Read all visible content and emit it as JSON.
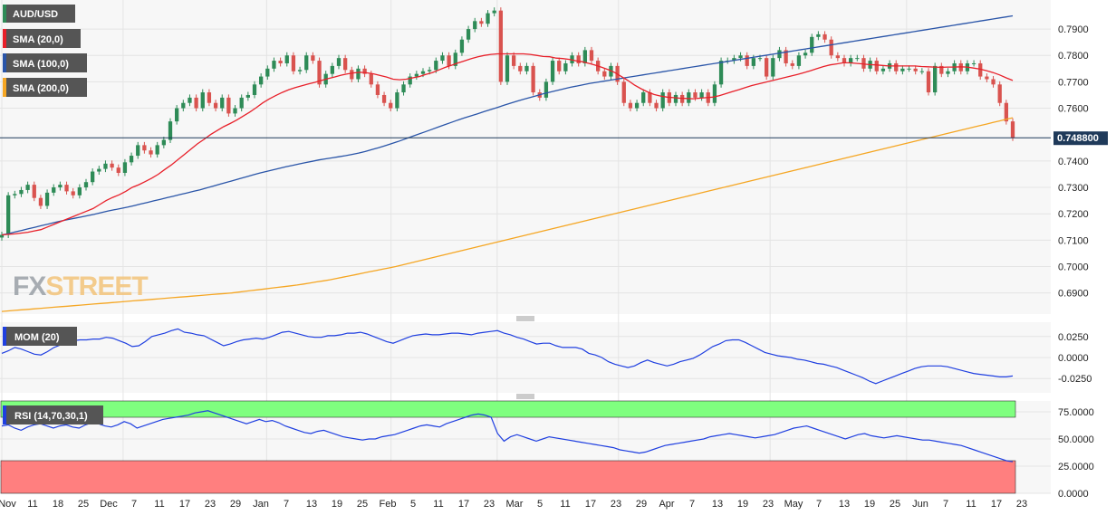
{
  "colors": {
    "background": "#f7f7f7",
    "grid": "#e4e4e4",
    "candle_up": "#2e8b57",
    "candle_down": "#d9534f",
    "sma20": "#e8202a",
    "sma100": "#2a55a8",
    "sma200": "#f5a623",
    "mom": "#1f3fe0",
    "rsi": "#1f3fe0",
    "rsi_overbought_zone": "#7fff7f",
    "rsi_oversold_zone": "#ff7f7f",
    "price_line": "#1f3a5a"
  },
  "watermark": {
    "part1": "FX",
    "part2": "STREET"
  },
  "chart_data": [
    {
      "type": "candlestick",
      "title": "AUD/USD",
      "legend": [
        {
          "label": "AUD/USD",
          "color": "#2e8b57"
        },
        {
          "label": "SMA (20,0)",
          "color": "#e8202a"
        },
        {
          "label": "SMA (100,0)",
          "color": "#2a55a8"
        },
        {
          "label": "SMA (200,0)",
          "color": "#f5a623"
        }
      ],
      "legend_placement": "top-left",
      "ylim": [
        0.682,
        0.801
      ],
      "yticks": [
        "0.7900",
        "0.7800",
        "0.7700",
        "0.7600",
        "0.7400",
        "0.7300",
        "0.7200",
        "0.7100",
        "0.7000",
        "0.6900"
      ],
      "ytick_values": [
        0.79,
        0.78,
        0.77,
        0.76,
        0.74,
        0.73,
        0.72,
        0.71,
        0.7,
        0.69
      ],
      "current_price": 0.7488,
      "current_price_label": "0.748800",
      "close": [
        0.712,
        0.727,
        0.7275,
        0.729,
        0.731,
        0.726,
        0.723,
        0.728,
        0.73,
        0.731,
        0.7285,
        0.727,
        0.73,
        0.732,
        0.736,
        0.737,
        0.739,
        0.7375,
        0.7355,
        0.7395,
        0.742,
        0.746,
        0.744,
        0.7425,
        0.746,
        0.748,
        0.755,
        0.76,
        0.762,
        0.764,
        0.76,
        0.766,
        0.762,
        0.76,
        0.764,
        0.758,
        0.76,
        0.764,
        0.765,
        0.769,
        0.772,
        0.775,
        0.778,
        0.777,
        0.78,
        0.774,
        0.7745,
        0.78,
        0.778,
        0.769,
        0.773,
        0.776,
        0.779,
        0.7745,
        0.771,
        0.775,
        0.773,
        0.769,
        0.765,
        0.762,
        0.76,
        0.766,
        0.769,
        0.772,
        0.773,
        0.774,
        0.7745,
        0.778,
        0.78,
        0.776,
        0.781,
        0.786,
        0.79,
        0.793,
        0.792,
        0.796,
        0.797,
        0.77,
        0.78,
        0.776,
        0.774,
        0.776,
        0.766,
        0.764,
        0.77,
        0.778,
        0.774,
        0.777,
        0.78,
        0.777,
        0.782,
        0.778,
        0.774,
        0.772,
        0.776,
        0.77,
        0.762,
        0.76,
        0.762,
        0.766,
        0.762,
        0.76,
        0.766,
        0.762,
        0.765,
        0.762,
        0.766,
        0.764,
        0.766,
        0.762,
        0.769,
        0.778,
        0.778,
        0.779,
        0.78,
        0.776,
        0.779,
        0.779,
        0.772,
        0.779,
        0.782,
        0.777,
        0.776,
        0.78,
        0.781,
        0.787,
        0.788,
        0.786,
        0.78,
        0.779,
        0.777,
        0.779,
        0.779,
        0.775,
        0.778,
        0.774,
        0.775,
        0.777,
        0.774,
        0.775,
        0.775,
        0.774,
        0.774,
        0.766,
        0.776,
        0.773,
        0.774,
        0.777,
        0.774,
        0.777,
        0.777,
        0.772,
        0.771,
        0.769,
        0.762,
        0.755,
        0.7488
      ],
      "sma20": [
        0.712,
        0.7122,
        0.7124,
        0.7127,
        0.713,
        0.7135,
        0.714,
        0.715,
        0.716,
        0.717,
        0.718,
        0.719,
        0.72,
        0.721,
        0.722,
        0.7235,
        0.725,
        0.7262,
        0.7272,
        0.7285,
        0.73,
        0.731,
        0.7322,
        0.7335,
        0.735,
        0.7368,
        0.7385,
        0.7405,
        0.7425,
        0.7445,
        0.7465,
        0.7482,
        0.75,
        0.7515,
        0.753,
        0.7542,
        0.7555,
        0.757,
        0.7585,
        0.7602,
        0.762,
        0.7635,
        0.7648,
        0.766,
        0.767,
        0.7678,
        0.7685,
        0.7692,
        0.7698,
        0.7705,
        0.7712,
        0.7718,
        0.7725,
        0.773,
        0.7734,
        0.7736,
        0.7734,
        0.773,
        0.7724,
        0.7718,
        0.771,
        0.7708,
        0.771,
        0.7715,
        0.772,
        0.7728,
        0.7735,
        0.7745,
        0.7755,
        0.7763,
        0.7772,
        0.778,
        0.7788,
        0.7795,
        0.78,
        0.7804,
        0.7806,
        0.7806,
        0.7806,
        0.7806,
        0.7806,
        0.7804,
        0.78,
        0.7796,
        0.7795,
        0.779,
        0.7788,
        0.7785,
        0.778,
        0.7776,
        0.777,
        0.7763,
        0.7755,
        0.7746,
        0.7735,
        0.772,
        0.7705,
        0.7688,
        0.7674,
        0.7662,
        0.7652,
        0.7646,
        0.7642,
        0.764,
        0.7638,
        0.7637,
        0.7636,
        0.7638,
        0.764,
        0.7642,
        0.7647,
        0.7655,
        0.7663,
        0.767,
        0.7678,
        0.7686,
        0.7692,
        0.7698,
        0.7704,
        0.771,
        0.7716,
        0.7722,
        0.7728,
        0.7735,
        0.7742,
        0.775,
        0.7758,
        0.7764,
        0.7768,
        0.7772,
        0.7772,
        0.777,
        0.7768,
        0.7765,
        0.7764,
        0.7762,
        0.776,
        0.776,
        0.776,
        0.776,
        0.776,
        0.7758,
        0.7757,
        0.7756,
        0.7755,
        0.7756,
        0.7756,
        0.7757,
        0.7756,
        0.7752,
        0.7748,
        0.7742,
        0.7735,
        0.7726,
        0.7715,
        0.7705
      ],
      "sma100": [
        0.712,
        0.7125,
        0.7131,
        0.7137,
        0.7143,
        0.7149,
        0.7155,
        0.7161,
        0.7167,
        0.7173,
        0.7178,
        0.7183,
        0.7188,
        0.7193,
        0.7198,
        0.7204,
        0.721,
        0.7215,
        0.722,
        0.7225,
        0.7231,
        0.7237,
        0.7243,
        0.7249,
        0.7255,
        0.7261,
        0.7267,
        0.7273,
        0.7279,
        0.7285,
        0.7291,
        0.7298,
        0.7305,
        0.7312,
        0.7319,
        0.7326,
        0.7333,
        0.734,
        0.7347,
        0.7354,
        0.736,
        0.7366,
        0.7372,
        0.7378,
        0.7383,
        0.7389,
        0.7394,
        0.7399,
        0.7404,
        0.7408,
        0.7412,
        0.7416,
        0.742,
        0.7425,
        0.743,
        0.7436,
        0.7443,
        0.745,
        0.7458,
        0.7466,
        0.7474,
        0.7483,
        0.7492,
        0.7501,
        0.751,
        0.7519,
        0.7528,
        0.7537,
        0.7546,
        0.7555,
        0.7563,
        0.7571,
        0.7579,
        0.7587,
        0.7595,
        0.7603,
        0.7611,
        0.7619,
        0.7627,
        0.7634,
        0.7641,
        0.7648,
        0.7655,
        0.7661,
        0.7667,
        0.7673,
        0.7679,
        0.7684,
        0.7689,
        0.7694,
        0.7698,
        0.7702,
        0.7706,
        0.771,
        0.7714,
        0.7718,
        0.7722,
        0.7726,
        0.773,
        0.7734,
        0.7738,
        0.7742,
        0.7746,
        0.775,
        0.7754,
        0.7758,
        0.7762,
        0.7766,
        0.777,
        0.7774,
        0.7778,
        0.7782,
        0.7786,
        0.779,
        0.7794,
        0.7798,
        0.7802,
        0.7806,
        0.781,
        0.7814,
        0.7818,
        0.7822,
        0.7826,
        0.783,
        0.7834,
        0.7838,
        0.7842,
        0.7846,
        0.785,
        0.7854,
        0.7858,
        0.7862,
        0.7866,
        0.787,
        0.7874,
        0.7878,
        0.7882,
        0.7886,
        0.789,
        0.7894,
        0.7898,
        0.7902,
        0.7906,
        0.791,
        0.7914,
        0.7918,
        0.7922,
        0.7926,
        0.793,
        0.7934,
        0.7938,
        0.7942,
        0.7946,
        0.795
      ],
      "sma200": [
        0.683,
        0.6832,
        0.6834,
        0.6836,
        0.6838,
        0.684,
        0.6842,
        0.6844,
        0.6846,
        0.6848,
        0.685,
        0.6852,
        0.6854,
        0.6856,
        0.6858,
        0.686,
        0.6862,
        0.6864,
        0.6866,
        0.6868,
        0.687,
        0.6872,
        0.6874,
        0.6876,
        0.6878,
        0.688,
        0.6882,
        0.6884,
        0.6886,
        0.6888,
        0.689,
        0.6892,
        0.6894,
        0.6896,
        0.6898,
        0.69,
        0.6903,
        0.6906,
        0.6909,
        0.6912,
        0.6915,
        0.6918,
        0.6921,
        0.6924,
        0.6927,
        0.693,
        0.6934,
        0.6938,
        0.6942,
        0.6946,
        0.695,
        0.6955,
        0.696,
        0.6965,
        0.697,
        0.6975,
        0.698,
        0.6985,
        0.699,
        0.6995,
        0.7,
        0.7006,
        0.7012,
        0.7018,
        0.7024,
        0.703,
        0.7036,
        0.7042,
        0.7048,
        0.7054,
        0.706,
        0.7066,
        0.7072,
        0.7078,
        0.7084,
        0.709,
        0.7096,
        0.7102,
        0.7108,
        0.7114,
        0.712,
        0.7126,
        0.7132,
        0.7138,
        0.7144,
        0.715,
        0.7156,
        0.7162,
        0.7168,
        0.7174,
        0.718,
        0.7186,
        0.7192,
        0.7198,
        0.7204,
        0.721,
        0.7216,
        0.7222,
        0.7228,
        0.7234,
        0.724,
        0.7246,
        0.7252,
        0.7258,
        0.7264,
        0.727,
        0.7276,
        0.7282,
        0.7288,
        0.7294,
        0.73,
        0.7306,
        0.7312,
        0.7318,
        0.7324,
        0.733,
        0.7336,
        0.7342,
        0.7348,
        0.7354,
        0.736,
        0.7366,
        0.7372,
        0.7378,
        0.7384,
        0.739,
        0.7396,
        0.7402,
        0.7408,
        0.7414,
        0.742,
        0.7426,
        0.7432,
        0.7438,
        0.7444,
        0.745,
        0.7456,
        0.7462,
        0.7468,
        0.7474,
        0.748,
        0.7486,
        0.7492,
        0.7498,
        0.7504,
        0.751,
        0.7516,
        0.7522,
        0.7528,
        0.7534,
        0.754,
        0.7546,
        0.7552,
        0.7558,
        0.7564
      ]
    },
    {
      "type": "line",
      "title": "MOM (20)",
      "ylim": [
        -0.042,
        0.042
      ],
      "yticks": [
        "0.0250",
        "0.0000",
        "-0.0250"
      ],
      "ytick_values": [
        0.025,
        0.0,
        -0.025
      ],
      "values": [
        0.005,
        0.008,
        0.012,
        0.01,
        0.007,
        0.004,
        0.003,
        0.007,
        0.012,
        0.015,
        0.018,
        0.02,
        0.021,
        0.021,
        0.022,
        0.022,
        0.024,
        0.023,
        0.02,
        0.017,
        0.013,
        0.014,
        0.019,
        0.025,
        0.027,
        0.029,
        0.032,
        0.034,
        0.03,
        0.029,
        0.027,
        0.026,
        0.022,
        0.018,
        0.014,
        0.016,
        0.019,
        0.021,
        0.022,
        0.023,
        0.022,
        0.024,
        0.027,
        0.03,
        0.031,
        0.029,
        0.027,
        0.025,
        0.024,
        0.024,
        0.026,
        0.026,
        0.027,
        0.029,
        0.029,
        0.03,
        0.028,
        0.025,
        0.022,
        0.019,
        0.017,
        0.02,
        0.023,
        0.026,
        0.027,
        0.028,
        0.027,
        0.027,
        0.028,
        0.029,
        0.029,
        0.028,
        0.027,
        0.029,
        0.03,
        0.031,
        0.032,
        0.029,
        0.027,
        0.024,
        0.022,
        0.019,
        0.016,
        0.017,
        0.017,
        0.014,
        0.012,
        0.012,
        0.012,
        0.01,
        0.005,
        0.003,
        0.0,
        -0.005,
        -0.008,
        -0.01,
        -0.012,
        -0.01,
        -0.006,
        -0.003,
        -0.006,
        -0.008,
        -0.01,
        -0.008,
        -0.005,
        -0.003,
        -0.001,
        0.003,
        0.008,
        0.013,
        0.016,
        0.02,
        0.021,
        0.021,
        0.018,
        0.014,
        0.01,
        0.006,
        0.004,
        0.002,
        0.001,
        0.0,
        -0.002,
        -0.003,
        -0.005,
        -0.007,
        -0.008,
        -0.01,
        -0.012,
        -0.015,
        -0.018,
        -0.021,
        -0.024,
        -0.028,
        -0.031,
        -0.028,
        -0.025,
        -0.022,
        -0.019,
        -0.016,
        -0.013,
        -0.011,
        -0.01,
        -0.01,
        -0.01,
        -0.011,
        -0.013,
        -0.015,
        -0.017,
        -0.019,
        -0.02,
        -0.021,
        -0.022,
        -0.023,
        -0.023,
        -0.022
      ]
    },
    {
      "type": "line",
      "title": "RSI (14,70,30,1)",
      "ylim": [
        0,
        85
      ],
      "overbought": 70,
      "oversold": 30,
      "yticks": [
        "75.0000",
        "50.0000",
        "25.0000",
        "0.0000"
      ],
      "ytick_values": [
        75,
        50,
        25,
        0
      ],
      "values": [
        62,
        63,
        60,
        58,
        61,
        63,
        64,
        62,
        60,
        62,
        63,
        61,
        60,
        63,
        65,
        64,
        62,
        61,
        63,
        66,
        64,
        60,
        62,
        64,
        66,
        68,
        69,
        70,
        71,
        72,
        74,
        75,
        76,
        74,
        72,
        70,
        68,
        66,
        64,
        66,
        68,
        66,
        67,
        65,
        62,
        60,
        58,
        56,
        55,
        57,
        58,
        56,
        54,
        52,
        51,
        50,
        49,
        50,
        50,
        52,
        53,
        54,
        56,
        58,
        60,
        62,
        63,
        62,
        61,
        64,
        66,
        68,
        70,
        72,
        73,
        72,
        70,
        55,
        48,
        52,
        54,
        52,
        50,
        48,
        50,
        52,
        51,
        50,
        49,
        48,
        47,
        46,
        45,
        44,
        43,
        42,
        40,
        39,
        38,
        37,
        38,
        40,
        42,
        44,
        45,
        46,
        47,
        48,
        49,
        50,
        52,
        53,
        54,
        55,
        54,
        53,
        52,
        51,
        52,
        53,
        54,
        56,
        58,
        60,
        61,
        62,
        60,
        58,
        56,
        54,
        52,
        50,
        52,
        54,
        55,
        53,
        52,
        51,
        52,
        53,
        52,
        51,
        50,
        49,
        49,
        48,
        47,
        46,
        45,
        44,
        42,
        40,
        38,
        36,
        34,
        32,
        30,
        29
      ]
    },
    {
      "type": "axis",
      "xtick_labels": [
        "Nov",
        "11",
        "18",
        "25",
        "Dec",
        "7",
        "11",
        "17",
        "23",
        "29",
        "Jan",
        "7",
        "13",
        "19",
        "25",
        "Feb",
        "5",
        "11",
        "17",
        "23",
        "Mar",
        "5",
        "11",
        "17",
        "23",
        "29",
        "Apr",
        "7",
        "13",
        "19",
        "23",
        "May",
        "7",
        "13",
        "19",
        "25",
        "Jun",
        "7",
        "11",
        "17",
        "23"
      ]
    }
  ]
}
